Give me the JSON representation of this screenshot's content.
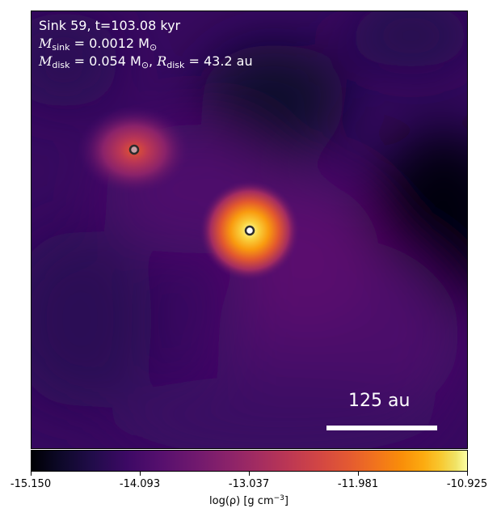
{
  "header": {
    "line1": "Sink 59, t=103.08 kyr",
    "msink_symbol": "M",
    "msink_sub": "sink",
    "msink_value": " = 0.0012 M",
    "msink_unit_sub": "⊙",
    "mdisk_symbol": "M",
    "mdisk_sub": "disk",
    "mdisk_value": " = 0.054 M",
    "mdisk_unit_sub": "⊙",
    "separator": ", ",
    "rdisk_symbol": "R",
    "rdisk_sub": "disk",
    "rdisk_value": " = 43.2 au"
  },
  "scalebar": {
    "label": "125 au"
  },
  "colorbar": {
    "colormap": "inferno",
    "ticks": [
      "-15.150",
      "-14.093",
      "-13.037",
      "-11.981",
      "-10.925"
    ],
    "label_main": "log(ρ) [g cm",
    "label_exp": "−3",
    "label_end": "]"
  },
  "sinks": [
    {
      "name": "secondary-sink",
      "marker_fill": "#c9a0a6",
      "marker_edge": "#2b2b2b"
    },
    {
      "name": "primary-sink",
      "marker_fill": "#ffffff",
      "marker_edge": "#2b2b2b"
    }
  ]
}
